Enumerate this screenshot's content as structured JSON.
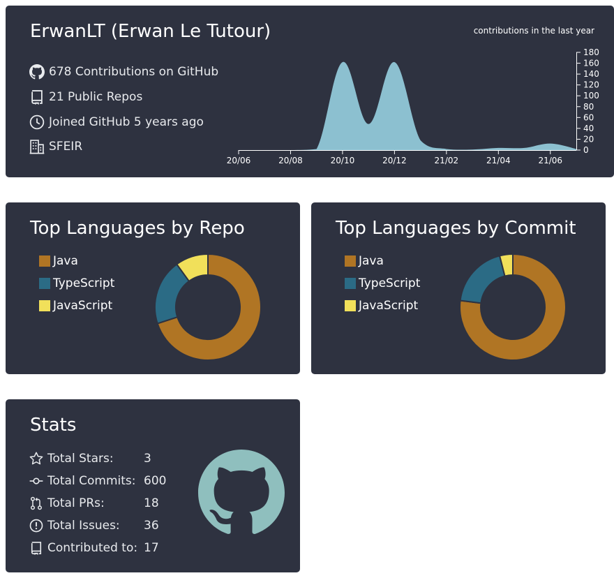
{
  "profile": {
    "title": "ErwanLT (Erwan Le Tutour)",
    "contributions": "678 Contributions on GitHub",
    "repos": "21 Public Repos",
    "joined": "Joined GitHub 5 years ago",
    "company": "SFEIR"
  },
  "contribution_chart": {
    "title": "contributions in the last year",
    "x_tick_labels": [
      "20/06",
      "20/08",
      "20/10",
      "20/12",
      "21/02",
      "21/04",
      "21/06"
    ],
    "y_tick_labels": [
      "180",
      "160",
      "140",
      "120",
      "100",
      "80",
      "60",
      "40",
      "20",
      "0"
    ],
    "fill_color": "#8cc0d0"
  },
  "repo_languages": {
    "title": "Top Languages by Repo",
    "items": [
      {
        "label": "Java",
        "color": "#b07524"
      },
      {
        "label": "TypeScript",
        "color": "#2b6b85"
      },
      {
        "label": "JavaScript",
        "color": "#f1e05a"
      }
    ]
  },
  "commit_languages": {
    "title": "Top Languages by Commit",
    "items": [
      {
        "label": "Java",
        "color": "#b07524"
      },
      {
        "label": "TypeScript",
        "color": "#2b6b85"
      },
      {
        "label": "JavaScript",
        "color": "#f1e05a"
      }
    ]
  },
  "stats": {
    "title": "Stats",
    "rows": [
      {
        "label": "Total Stars:",
        "value": "3",
        "icon": "star-icon"
      },
      {
        "label": "Total Commits:",
        "value": "600",
        "icon": "commit-icon"
      },
      {
        "label": "Total PRs:",
        "value": "18",
        "icon": "pull-request-icon"
      },
      {
        "label": "Total Issues:",
        "value": "36",
        "icon": "issue-icon"
      },
      {
        "label": "Contributed to:",
        "value": "17",
        "icon": "repo-icon"
      }
    ],
    "logo_color": "#8fbfbe"
  },
  "chart_data": [
    {
      "type": "area",
      "title": "contributions in the last year",
      "x": [
        "20/06",
        "20/07",
        "20/08",
        "20/09",
        "20/10",
        "20/11",
        "20/12",
        "21/01",
        "21/02",
        "21/03",
        "21/04",
        "21/05",
        "21/06",
        "21/07"
      ],
      "values": [
        0,
        0,
        0,
        2,
        162,
        48,
        162,
        18,
        2,
        1,
        4,
        4,
        12,
        2
      ],
      "ylim": [
        0,
        180
      ],
      "xlabel": "",
      "ylabel": ""
    },
    {
      "type": "pie",
      "title": "Top Languages by Repo",
      "categories": [
        "Java",
        "TypeScript",
        "JavaScript"
      ],
      "values": [
        70,
        20,
        10
      ]
    },
    {
      "type": "pie",
      "title": "Top Languages by Commit",
      "categories": [
        "Java",
        "TypeScript",
        "JavaScript"
      ],
      "values": [
        77,
        19,
        4
      ]
    }
  ]
}
